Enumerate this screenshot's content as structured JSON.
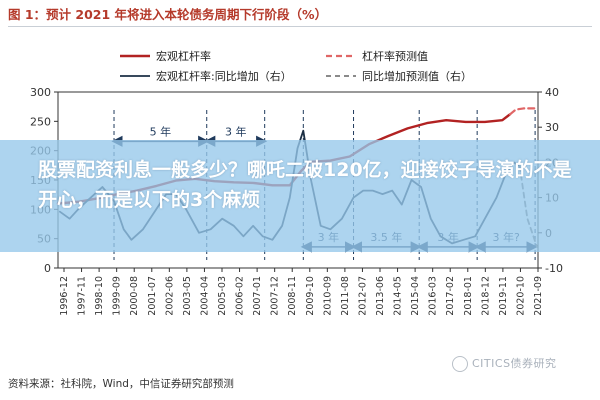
{
  "figure": {
    "title": "图 1：预计 2021 年将进入本轮债务周期下行阶段（%）",
    "source": "资料来源：社科院，Wind，中信证券研究部预测",
    "watermark": "CITICS债券研究"
  },
  "overlay": {
    "headline": "股票配资利息一般多少？哪吒二破120亿，迎接饺子导演的不是开心，而是以下的3个麻烦"
  },
  "colors": {
    "leverage": "#b22222",
    "leverage_forecast": "#e06666",
    "yoy": "#1c2f44",
    "yoy_forecast": "#7a7a7a",
    "annotation": "#1f3a5c"
  },
  "chart_data": {
    "type": "line",
    "x_ticks": [
      "1996-12",
      "1997-11",
      "1998-10",
      "1999-09",
      "2000-08",
      "2001-07",
      "2002-06",
      "2003-05",
      "2004-04",
      "2005-03",
      "2006-02",
      "2007-01",
      "2007-12",
      "2008-11",
      "2009-10",
      "2010-09",
      "2011-08",
      "2012-07",
      "2013-06",
      "2014-05",
      "2015-04",
      "2016-03",
      "2017-02",
      "2018-01",
      "2018-12",
      "2019-11",
      "2020-10",
      "2021-09"
    ],
    "y_left": {
      "ticks": [
        0,
        50,
        100,
        150,
        200,
        250,
        300
      ],
      "range": [
        0,
        300
      ]
    },
    "y_right": {
      "ticks": [
        -10,
        0,
        10,
        20,
        30,
        40
      ],
      "range": [
        -10,
        40
      ]
    },
    "legend": {
      "position": "top",
      "entries": [
        {
          "key": "leverage",
          "label": "宏观杠杆率"
        },
        {
          "key": "leverage_forecast",
          "label": "杠杆率预测值"
        },
        {
          "key": "yoy",
          "label": "宏观杠杆率:同比增加（右）"
        },
        {
          "key": "yoy_forecast",
          "label": "同比增加预测值（右）"
        }
      ]
    },
    "series": [
      {
        "key": "leverage",
        "name": "宏观杠杆率",
        "axis": "left",
        "x": [
          1996.9,
          1998.0,
          1999.0,
          2000.0,
          2001.0,
          2002.0,
          2003.0,
          2004.0,
          2005.0,
          2006.0,
          2007.0,
          2008.0,
          2008.9,
          2009.5,
          2010.0,
          2011.0,
          2012.0,
          2013.0,
          2014.0,
          2015.0,
          2016.0,
          2017.0,
          2018.0,
          2019.0,
          2019.9,
          2020.3
        ],
        "y": [
          110,
          113,
          119,
          126,
          132,
          140,
          149,
          152,
          148,
          146,
          145,
          141,
          141,
          166,
          181,
          183,
          190,
          211,
          225,
          238,
          247,
          252,
          249,
          249,
          252,
          262
        ]
      },
      {
        "key": "leverage_forecast",
        "name": "杠杆率预测值",
        "axis": "left",
        "x": [
          2020.3,
          2020.6,
          2021.0,
          2021.7
        ],
        "y": [
          262,
          270,
          272,
          272
        ]
      },
      {
        "key": "yoy",
        "name": "宏观杠杆率:同比增加（右）",
        "axis": "right",
        "x": [
          1997.0,
          1997.5,
          1998.0,
          1998.6,
          1999.2,
          1999.8,
          2000.3,
          2000.7,
          2001.3,
          2001.9,
          2002.5,
          2003.0,
          2003.5,
          2004.2,
          2004.8,
          2005.4,
          2006.0,
          2006.5,
          2007.0,
          2007.5,
          2008.0,
          2008.5,
          2008.9,
          2009.3,
          2009.6,
          2010.0,
          2010.5,
          2011.0,
          2011.6,
          2012.2,
          2012.7,
          2013.2,
          2013.7,
          2014.2,
          2014.7,
          2015.2,
          2015.7,
          2016.2,
          2016.7,
          2017.3,
          2017.9,
          2018.5,
          2019.1,
          2019.6,
          2020.1,
          2020.5,
          2020.8
        ],
        "y": [
          6,
          4,
          7,
          10,
          13,
          9,
          1,
          -2,
          1,
          6,
          11,
          11,
          7,
          0,
          1,
          4,
          2,
          -1,
          2,
          -1,
          -2,
          2,
          10,
          24,
          29,
          15,
          2,
          1,
          4,
          10,
          12,
          12,
          11,
          12,
          8,
          15,
          13,
          4,
          -1,
          -3,
          -2,
          -1,
          5,
          10,
          17,
          20,
          19
        ]
      },
      {
        "key": "yoy_forecast",
        "name": "同比增加预测值（右）",
        "axis": "right",
        "x": [
          2020.8,
          2021.2,
          2021.7
        ],
        "y": [
          19,
          4,
          -4
        ]
      }
    ],
    "annotations": [
      {
        "label": "5 年",
        "from": 1999.8,
        "to": 2004.6,
        "y_right": 26
      },
      {
        "label": "3 年",
        "from": 2004.6,
        "to": 2007.6,
        "y_right": 26
      },
      {
        "label": "3 年",
        "from": 2009.6,
        "to": 2012.2,
        "y_right": -4
      },
      {
        "label": "3.5 年",
        "from": 2012.2,
        "to": 2015.6,
        "y_right": -4
      },
      {
        "label": "3 年",
        "from": 2015.6,
        "to": 2018.6,
        "y_right": -4
      },
      {
        "label": "3 年?",
        "from": 2018.6,
        "to": 2021.6,
        "y_right": -4
      }
    ]
  }
}
